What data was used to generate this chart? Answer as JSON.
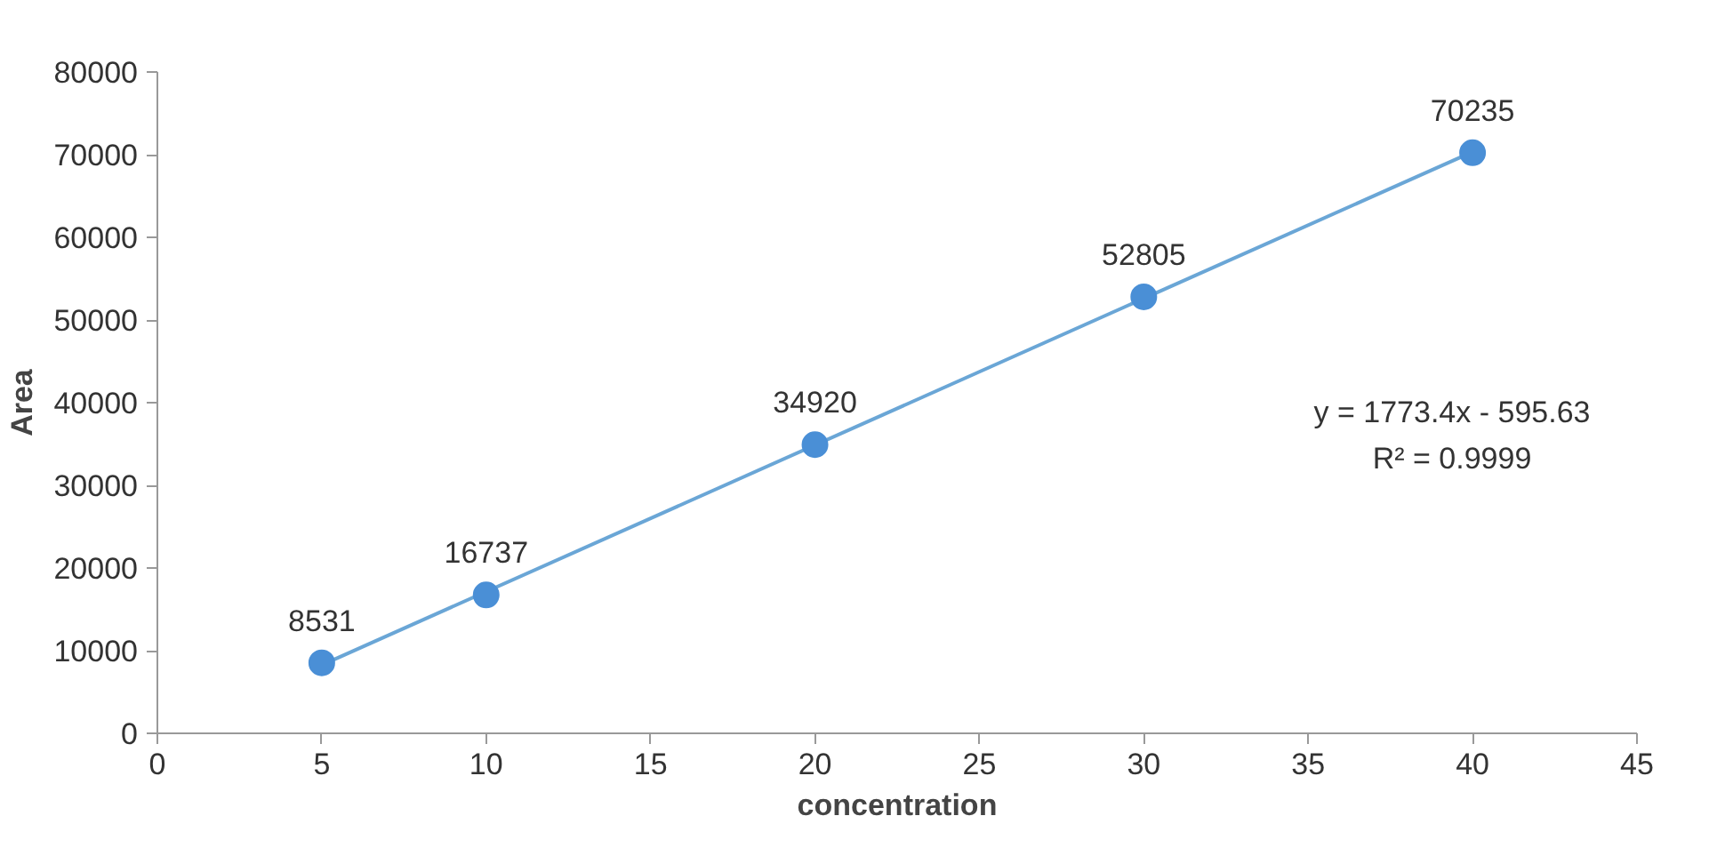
{
  "chart_data": {
    "type": "scatter",
    "xlabel": "concentration",
    "ylabel": "Area",
    "xlim": [
      0,
      45
    ],
    "xticks": [
      0,
      5,
      10,
      15,
      20,
      25,
      30,
      35,
      40,
      45
    ],
    "ylim": [
      0,
      80000
    ],
    "yticks": [
      0,
      10000,
      20000,
      30000,
      40000,
      50000,
      60000,
      70000,
      80000
    ],
    "grid": false,
    "series": [
      {
        "type": "line",
        "color": "#6aa6d6",
        "x": [
          5,
          40
        ],
        "values": [
          8270,
          70340
        ]
      },
      {
        "color": "#4a8fd6",
        "marker": "circle",
        "x": [
          5,
          10,
          20,
          30,
          40
        ],
        "values": [
          8531,
          16737,
          34920,
          52805,
          70235
        ],
        "value_labels": [
          "8531",
          "16737",
          "34920",
          "52805",
          "70235"
        ]
      }
    ],
    "annotations": [
      "y = 1773.4x - 595.63",
      "R² = 0.9999"
    ]
  }
}
